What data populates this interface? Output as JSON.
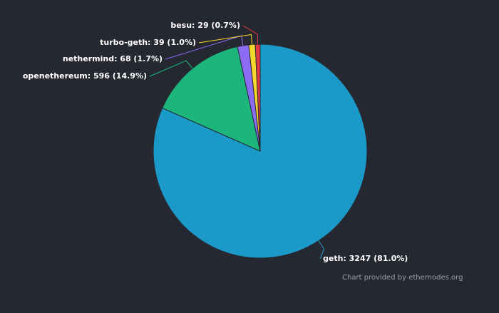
{
  "chart_data": {
    "type": "pie",
    "values": [
      3247,
      596,
      68,
      39,
      29
    ],
    "value_labels": [
      "geth: 3247 (81.0%)",
      "openethereum: 596 (14.9%)",
      "nethermind: 68 (1.7%)",
      "turbo-geth: 39 (1.0%)",
      "besu: 29 (0.7%)"
    ],
    "colors": [
      "#1b9ac9",
      "#1cb67d",
      "#8c6cf5",
      "#f5d62a",
      "#e63946"
    ],
    "credit": "Chart provided by ethernodes.org"
  }
}
